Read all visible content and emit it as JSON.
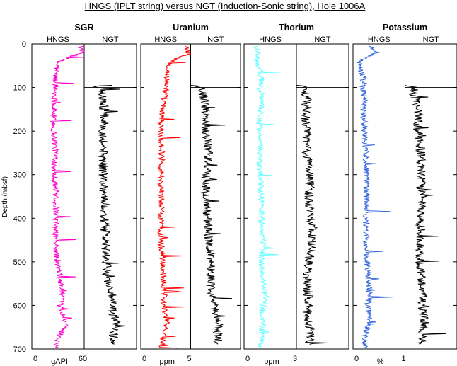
{
  "chart_data": {
    "type": "line",
    "title": "HNGS (IPLT string) versus NGT (Induction-Sonic string), Hole 1006A",
    "ylabel": "Depth (mbsf)",
    "ylim": [
      0,
      700
    ],
    "y_inverted": true,
    "y_ticks": [
      "0",
      "100",
      "200",
      "300",
      "400",
      "500",
      "600",
      "700"
    ],
    "grid": false,
    "panels": [
      {
        "name": "SGR",
        "unit": "gAPI",
        "xlim": [
          0,
          60
        ],
        "x_ticks": [
          "0",
          "60"
        ],
        "series": [
          {
            "name": "HNGS",
            "color": "#ff00cc",
            "depth_start": 5,
            "depth_end": 698,
            "depth": [
              5,
              20,
              40,
              60,
              80,
              100,
              130,
              160,
              200,
              250,
              300,
              350,
              400,
              450,
              500,
              550,
              580,
              600,
              620,
              640,
              660,
              680,
              698
            ],
            "values": [
              55,
              58,
              30,
              28,
              27,
              27,
              26,
              25,
              25,
              27,
              26,
              28,
              27,
              27,
              29,
              33,
              35,
              32,
              35,
              40,
              34,
              30,
              28
            ]
          },
          {
            "name": "NGT",
            "color": "#000000",
            "depth_start": 95,
            "depth_end": 690,
            "depth": [
              95,
              100,
              130,
              160,
              200,
              250,
              300,
              350,
              400,
              450,
              500,
              550,
              580,
              600,
              620,
              640,
              660,
              680,
              690
            ],
            "values": [
              8,
              20,
              22,
              23,
              22,
              22,
              22,
              23,
              23,
              24,
              25,
              28,
              32,
              31,
              33,
              38,
              34,
              33,
              32
            ]
          }
        ]
      },
      {
        "name": "Uranium",
        "unit": "ppm",
        "xlim": [
          0,
          5
        ],
        "x_ticks": [
          "0",
          "5"
        ],
        "series": [
          {
            "name": "HNGS",
            "color": "#ff0000",
            "depth_start": 5,
            "depth_end": 698,
            "depth": [
              5,
              20,
              40,
              60,
              80,
              100,
              130,
              160,
              200,
              250,
              300,
              350,
              400,
              450,
              500,
              550,
              580,
              600,
              620,
              640,
              660,
              680,
              698
            ],
            "values": [
              4.7,
              4.8,
              3.0,
              2.7,
              2.6,
              2.6,
              2.3,
              2.1,
              2.0,
              2.1,
              2.0,
              2.1,
              2.0,
              2.0,
              2.2,
              2.3,
              2.4,
              2.3,
              2.5,
              2.6,
              2.4,
              2.2,
              2.1
            ]
          },
          {
            "name": "NGT",
            "color": "#000000",
            "depth_start": 95,
            "depth_end": 690,
            "depth": [
              95,
              100,
              130,
              160,
              200,
              250,
              300,
              350,
              400,
              450,
              500,
              550,
              580,
              600,
              620,
              640,
              660,
              680,
              690
            ],
            "values": [
              0.3,
              1.2,
              1.4,
              1.6,
              1.6,
              1.8,
              1.6,
              1.5,
              1.7,
              1.8,
              2.1,
              2.0,
              2.2,
              2.4,
              2.5,
              2.9,
              2.7,
              2.8,
              2.6
            ]
          }
        ]
      },
      {
        "name": "Thorium",
        "unit": "ppm",
        "xlim": [
          0,
          3
        ],
        "x_ticks": [
          "0",
          "3"
        ],
        "series": [
          {
            "name": "HNGS",
            "color": "#66ffff",
            "depth_start": 5,
            "depth_end": 698,
            "depth": [
              5,
              20,
              40,
              60,
              80,
              100,
              130,
              160,
              200,
              250,
              300,
              350,
              400,
              450,
              500,
              550,
              580,
              600,
              620,
              640,
              660,
              680,
              698
            ],
            "values": [
              0.6,
              0.8,
              0.7,
              0.9,
              1.0,
              0.9,
              1.1,
              0.9,
              0.9,
              0.9,
              0.9,
              1.0,
              1.0,
              1.1,
              1.0,
              1.1,
              1.2,
              1.1,
              1.0,
              1.1,
              1.0,
              1.0,
              0.9
            ]
          },
          {
            "name": "NGT",
            "color": "#000000",
            "depth_start": 95,
            "depth_end": 690,
            "depth": [
              95,
              100,
              130,
              160,
              200,
              250,
              300,
              350,
              400,
              450,
              500,
              550,
              580,
              600,
              620,
              640,
              660,
              680,
              690
            ],
            "values": [
              0.2,
              0.4,
              0.6,
              0.5,
              0.6,
              0.6,
              0.8,
              0.7,
              0.9,
              0.9,
              0.7,
              0.6,
              0.7,
              0.7,
              0.6,
              0.7,
              0.8,
              0.8,
              0.7
            ]
          }
        ]
      },
      {
        "name": "Potassium",
        "unit": "%",
        "xlim": [
          0,
          1
        ],
        "x_ticks": [
          "0",
          "1"
        ],
        "series": [
          {
            "name": "HNGS",
            "color": "#3366dd",
            "depth_start": 5,
            "depth_end": 698,
            "depth": [
              5,
              20,
              40,
              60,
              80,
              100,
              130,
              160,
              200,
              250,
              300,
              350,
              400,
              450,
              500,
              550,
              580,
              600,
              620,
              640,
              660,
              680,
              698
            ],
            "values": [
              0.3,
              0.45,
              0.1,
              0.15,
              0.2,
              0.2,
              0.22,
              0.2,
              0.22,
              0.25,
              0.25,
              0.26,
              0.25,
              0.25,
              0.27,
              0.3,
              0.32,
              0.28,
              0.33,
              0.3,
              0.25,
              0.22,
              0.22
            ]
          },
          {
            "name": "NGT",
            "color": "#000000",
            "depth_start": 95,
            "depth_end": 690,
            "depth": [
              95,
              100,
              130,
              160,
              200,
              250,
              300,
              350,
              400,
              450,
              500,
              550,
              580,
              600,
              620,
              640,
              660,
              680,
              690
            ],
            "values": [
              0.05,
              0.15,
              0.2,
              0.25,
              0.25,
              0.3,
              0.3,
              0.32,
              0.3,
              0.3,
              0.28,
              0.33,
              0.35,
              0.3,
              0.35,
              0.38,
              0.35,
              0.35,
              0.33
            ]
          }
        ]
      }
    ]
  }
}
